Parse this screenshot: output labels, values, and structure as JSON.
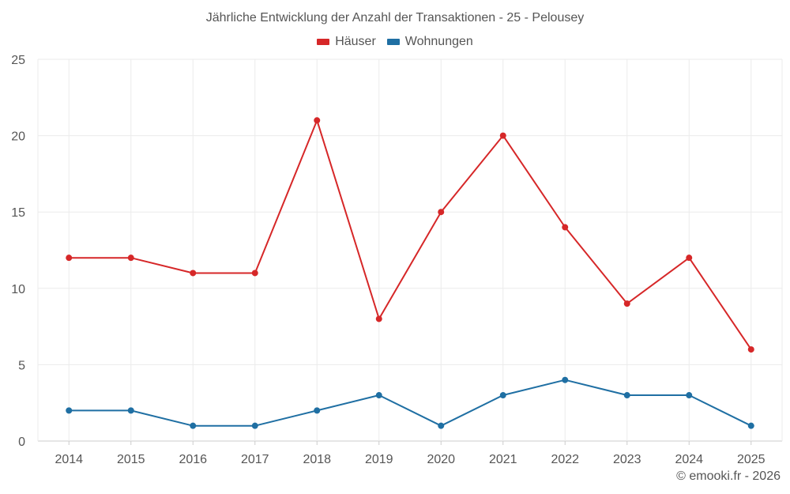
{
  "chart_data": {
    "type": "line",
    "title": "Jährliche Entwicklung der Anzahl der Transaktionen - 25 - Pelousey",
    "xlabel": "",
    "ylabel": "",
    "x": [
      "2014",
      "2015",
      "2016",
      "2017",
      "2018",
      "2019",
      "2020",
      "2021",
      "2022",
      "2023",
      "2024",
      "2025"
    ],
    "series": [
      {
        "name": "Häuser",
        "color": "#d62728",
        "values": [
          12,
          12,
          11,
          11,
          21,
          8,
          15,
          20,
          14,
          9,
          12,
          6
        ]
      },
      {
        "name": "Wohnungen",
        "color": "#1f6fa3",
        "values": [
          2,
          2,
          1,
          1,
          2,
          3,
          1,
          3,
          4,
          3,
          3,
          1
        ]
      }
    ],
    "ylim": [
      0,
      25
    ],
    "yticks": [
      0,
      5,
      10,
      15,
      20,
      25
    ],
    "grid": true,
    "legend_position": "top-center"
  },
  "credit": "© emooki.fr - 2026"
}
